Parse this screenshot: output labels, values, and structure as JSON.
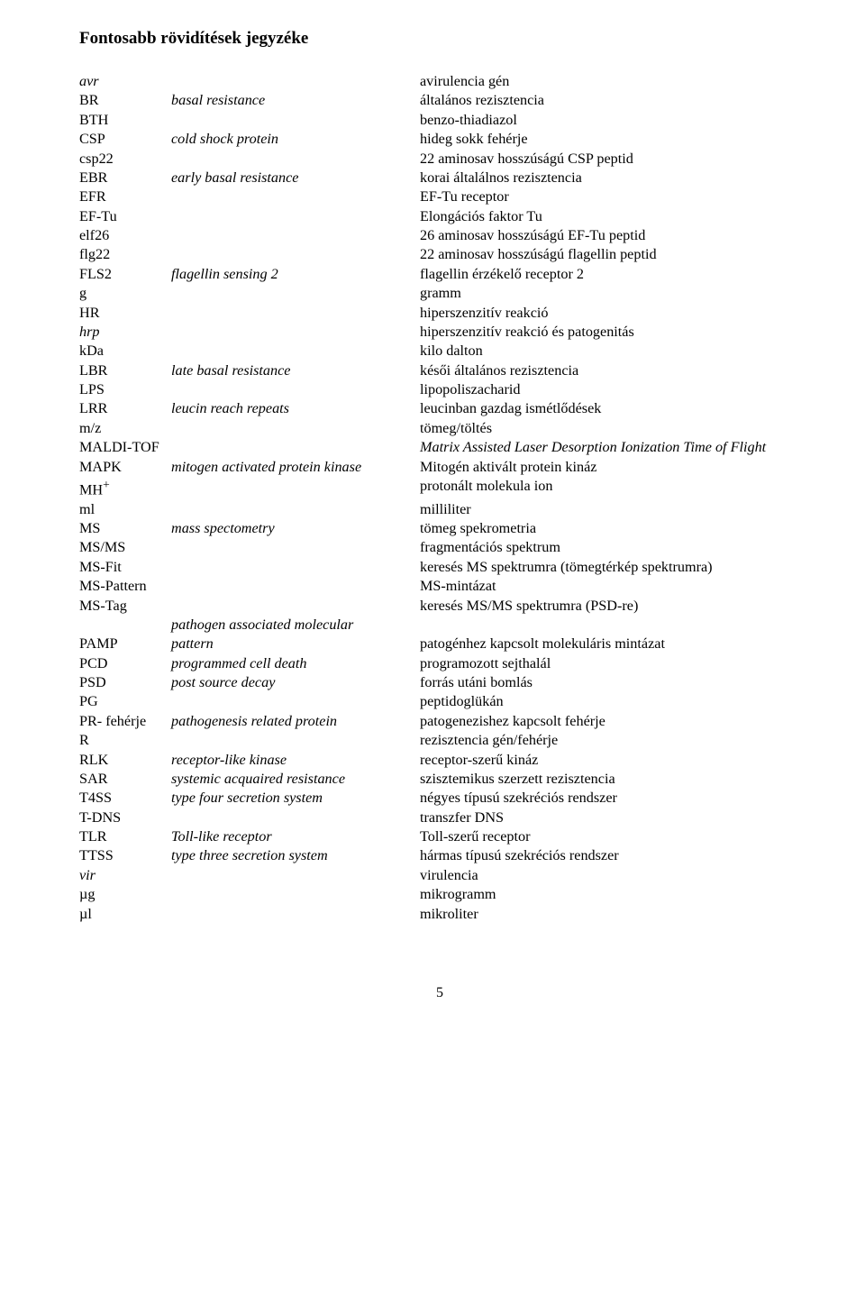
{
  "title": "Fontosabb rövidítések jegyzéke",
  "page_number": "5",
  "rows": [
    {
      "abbr": "avr",
      "en": "",
      "hu": "avirulencia gén",
      "abbr_it": true
    },
    {
      "abbr": "BR",
      "en": "basal resistance",
      "hu": "általános rezisztencia"
    },
    {
      "abbr": "BTH",
      "en": "",
      "hu": "benzo-thiadiazol"
    },
    {
      "abbr": "CSP",
      "en": "cold shock protein",
      "hu": "hideg sokk fehérje"
    },
    {
      "abbr": "csp22",
      "en": "",
      "hu": "22 aminosav hosszúságú CSP peptid"
    },
    {
      "abbr": "EBR",
      "en": "early basal resistance",
      "hu": "korai általálnos rezisztencia"
    },
    {
      "abbr": "EFR",
      "en": "",
      "hu": "EF-Tu receptor"
    },
    {
      "abbr": "EF-Tu",
      "en": "",
      "hu": "Elongációs faktor Tu"
    },
    {
      "abbr": "elf26",
      "en": "",
      "hu": "26 aminosav hosszúságú EF-Tu peptid"
    },
    {
      "abbr": "flg22",
      "en": "",
      "hu": "22 aminosav hosszúságú flagellin peptid"
    },
    {
      "abbr": "FLS2",
      "en": "flagellin sensing 2",
      "hu": "flagellin érzékelő receptor 2"
    },
    {
      "abbr": "g",
      "en": "",
      "hu": "gramm"
    },
    {
      "abbr": "HR",
      "en": "",
      "hu": "hiperszenzitív reakció"
    },
    {
      "abbr": "hrp",
      "en": "",
      "hu": "hiperszenzitív reakció és patogenitás",
      "abbr_it": true
    },
    {
      "abbr": "kDa",
      "en": "",
      "hu": "kilo dalton"
    },
    {
      "abbr": "LBR",
      "en": "late basal resistance",
      "hu": "késői általános rezisztencia"
    },
    {
      "abbr": "LPS",
      "en": "",
      "hu": "lipopoliszacharid"
    },
    {
      "abbr": "LRR",
      "en": "leucin reach repeats",
      "hu": "leucinban gazdag ismétlődések"
    },
    {
      "abbr": "m/z",
      "en": "",
      "hu": "tömeg/töltés"
    },
    {
      "abbr": "MALDI-TOF",
      "en": "",
      "hu": "Matrix Assisted Laser Desorption Ionization Time of Flight",
      "hu_it": true
    },
    {
      "abbr": "MAPK",
      "en": "mitogen activated protein kinase",
      "hu": "Mitogén aktivált protein kináz"
    },
    {
      "abbr": "MH",
      "sup": "+",
      "en": "",
      "hu": "protonált molekula ion"
    },
    {
      "abbr": "ml",
      "en": "",
      "hu": "milliliter"
    },
    {
      "abbr": "MS",
      "en": "mass spectometry",
      "hu": "tömeg spekrometria"
    },
    {
      "abbr": "MS/MS",
      "en": "",
      "hu": "fragmentációs spektrum"
    },
    {
      "abbr": "MS-Fit",
      "en": "",
      "hu": "keresés MS spektrumra (tömegtérkép spektrumra)"
    },
    {
      "abbr": "MS-Pattern",
      "en": "",
      "hu": "MS-mintázat"
    },
    {
      "abbr": "MS-Tag",
      "en": "",
      "hu": "keresés MS/MS spektrumra (PSD-re)"
    },
    {
      "abbr": "PAMP",
      "en": "pathogen associated molecular pattern",
      "hu": "patogénhez kapcsolt molekuláris mintázat",
      "en_twoline": true
    },
    {
      "abbr": "PCD",
      "en": "programmed cell death",
      "hu": "programozott sejthalál"
    },
    {
      "abbr": "PSD",
      "en": "post source decay",
      "hu": "forrás utáni bomlás"
    },
    {
      "abbr": "PG",
      "en": "",
      "hu": "peptidoglükán"
    },
    {
      "abbr": "PR- fehérje",
      "en": "pathogenesis related protein",
      "hu": "patogenezishez kapcsolt fehérje"
    },
    {
      "abbr": "R",
      "en": "",
      "hu": "rezisztencia gén/fehérje"
    },
    {
      "abbr": "RLK",
      "en": "receptor-like kinase",
      "hu": "receptor-szerű kináz"
    },
    {
      "abbr": "SAR",
      "en": "systemic acquaired resistance",
      "hu": "szisztemikus szerzett rezisztencia"
    },
    {
      "abbr": "T4SS",
      "en": "type four secretion system",
      "hu": "négyes típusú szekréciós rendszer"
    },
    {
      "abbr": "T-DNS",
      "en": "",
      "hu": "transzfer DNS"
    },
    {
      "abbr": "TLR",
      "en": "Toll-like receptor",
      "hu": "Toll-szerű receptor"
    },
    {
      "abbr": "TTSS",
      "en": "type three secretion system",
      "hu": "hármas típusú szekréciós rendszer"
    },
    {
      "abbr": "vir",
      "en": "",
      "hu": "virulencia",
      "abbr_it": true
    },
    {
      "abbr": "µg",
      "en": "",
      "hu": "mikrogramm"
    },
    {
      "abbr": "µl",
      "en": "",
      "hu": "mikroliter"
    }
  ]
}
